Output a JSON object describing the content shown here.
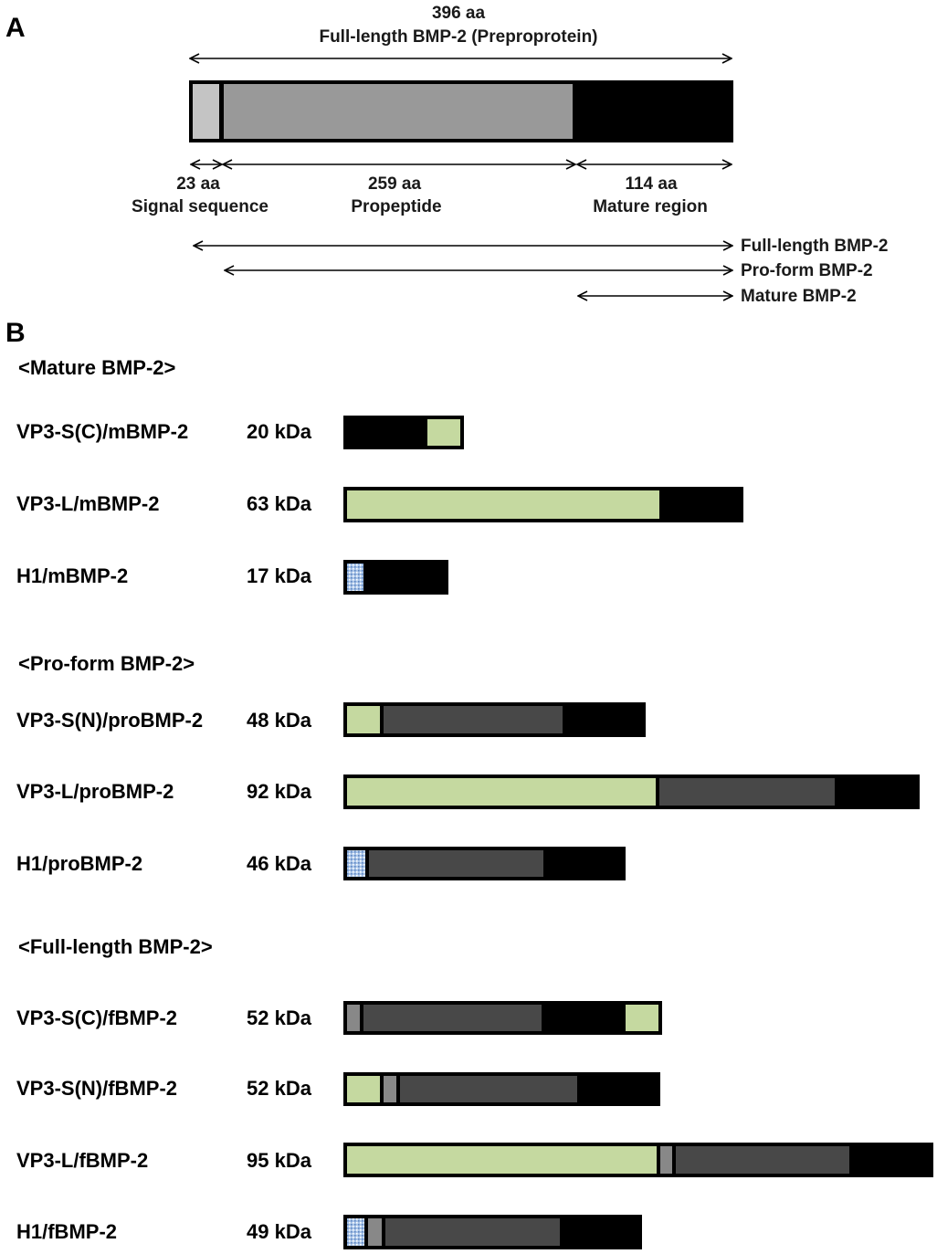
{
  "panel_a": {
    "letter": "A",
    "total_length": "396 aa",
    "total_title": "Full-length BMP-2  (Preproprotein)",
    "segments": [
      {
        "length": "23 aa",
        "name": "Signal sequence",
        "key": "signal",
        "aa": 23
      },
      {
        "length": "259 aa",
        "name": "Propeptide",
        "key": "propeptide",
        "aa": 259
      },
      {
        "length": "114 aa",
        "name": "Mature region",
        "key": "mature",
        "aa": 114
      }
    ],
    "forms": [
      {
        "label": "Full-length BMP-2",
        "starts_at": "signal"
      },
      {
        "label": "Pro-form BMP-2",
        "starts_at": "propeptide"
      },
      {
        "label": "Mature BMP-2",
        "starts_at": "mature"
      }
    ]
  },
  "panel_b": {
    "letter": "B",
    "groups": [
      {
        "title": "<Mature BMP-2>",
        "constructs": [
          {
            "name": "VP3-S(C)/mBMP-2",
            "mass": "20 kDa",
            "kda": 20,
            "segments": [
              "mature",
              "vp3-s"
            ]
          },
          {
            "name": "VP3-L/mBMP-2",
            "mass": "63 kDa",
            "kda": 63,
            "segments": [
              "vp3-l",
              "mature"
            ]
          },
          {
            "name": "H1/mBMP-2",
            "mass": "17 kDa",
            "kda": 17,
            "segments": [
              "h1",
              "mature"
            ]
          }
        ]
      },
      {
        "title": "<Pro-form BMP-2>",
        "constructs": [
          {
            "name": "VP3-S(N)/proBMP-2",
            "mass": "48 kDa",
            "kda": 48,
            "segments": [
              "vp3-s",
              "propeptide",
              "mature"
            ]
          },
          {
            "name": "VP3-L/proBMP-2",
            "mass": "92 kDa",
            "kda": 92,
            "segments": [
              "vp3-l",
              "propeptide",
              "mature"
            ]
          },
          {
            "name": "H1/proBMP-2",
            "mass": "46 kDa",
            "kda": 46,
            "segments": [
              "h1",
              "propeptide",
              "mature"
            ]
          }
        ]
      },
      {
        "title": "<Full-length BMP-2>",
        "constructs": [
          {
            "name": "VP3-S(C)/fBMP-2",
            "mass": "52 kDa",
            "kda": 52,
            "segments": [
              "signal",
              "propeptide",
              "mature",
              "vp3-s"
            ]
          },
          {
            "name": "VP3-S(N)/fBMP-2",
            "mass": "52 kDa",
            "kda": 52,
            "segments": [
              "vp3-s",
              "signal",
              "propeptide",
              "mature"
            ]
          },
          {
            "name": "VP3-L/fBMP-2",
            "mass": "95 kDa",
            "kda": 95,
            "segments": [
              "vp3-l",
              "signal",
              "propeptide",
              "mature"
            ]
          },
          {
            "name": "H1/fBMP-2",
            "mass": "49 kDa",
            "kda": 49,
            "segments": [
              "h1",
              "signal",
              "propeptide",
              "mature"
            ]
          }
        ]
      }
    ]
  },
  "colors": {
    "signal_a": "#c4c4c4",
    "propeptide_a": "#999999",
    "signal_b": "#888888",
    "propeptide_b": "#484848",
    "mature": "#000000",
    "vp3_tag": "#c5d9a0",
    "h1_tag": "#a8c4e8"
  }
}
